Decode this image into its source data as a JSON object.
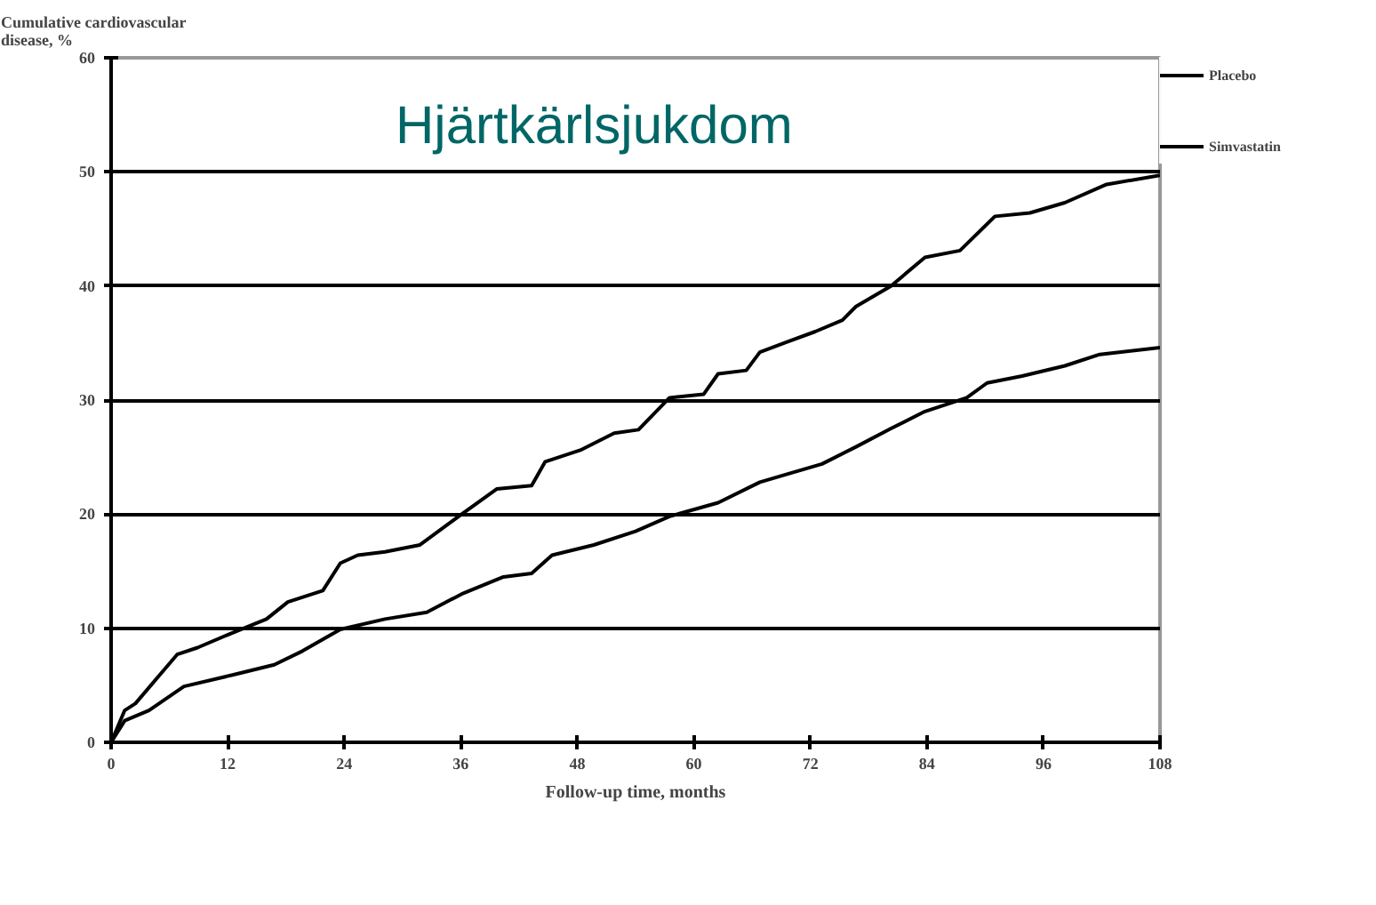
{
  "chart_data": {
    "type": "line",
    "title": "Hjärtkärlsjukdom",
    "ylabel": "Cumulative cardiovascular\ndisease, %",
    "xlabel": "Follow-up time, months",
    "xlim": [
      0,
      108
    ],
    "xticks": [
      0,
      12,
      24,
      36,
      48,
      60,
      72,
      84,
      96,
      108
    ],
    "ylim": [
      0,
      60
    ],
    "yticks": [
      0,
      10,
      20,
      30,
      40,
      50,
      60
    ],
    "grid": "y",
    "legend": "right",
    "line_style": "solid",
    "series": [
      {
        "name": "Placebo",
        "color": "#000000",
        "x": [
          0,
          1.4,
          2.5,
          6.8,
          8.9,
          12.5,
          16,
          18.2,
          21.8,
          23.6,
          25.4,
          28.2,
          31.8,
          36.1,
          39.7,
          43.3,
          44.7,
          48.3,
          51.8,
          54.3,
          57.5,
          61,
          62.5,
          65.4,
          66.8,
          69.6,
          72.5,
          75.3,
          76.7,
          80.3,
          83.8,
          87.4,
          91,
          94.6,
          98.2,
          102.5,
          108
        ],
        "values": [
          0,
          2.8,
          3.4,
          7.7,
          8.3,
          9.6,
          10.8,
          12.3,
          13.3,
          15.7,
          16.4,
          16.7,
          17.3,
          20,
          22.2,
          22.5,
          24.6,
          25.6,
          27.1,
          27.4,
          30.2,
          30.5,
          32.3,
          32.6,
          34.2,
          35.1,
          36,
          37,
          38.2,
          40,
          42.5,
          43.1,
          46.1,
          46.4,
          47.3,
          48.9,
          49.7
        ]
      },
      {
        "name": "Simvastatin",
        "color": "#000000",
        "x": [
          0,
          1.4,
          3.9,
          7.5,
          12.5,
          16.8,
          19.7,
          23.6,
          28.2,
          32.5,
          36.1,
          40.4,
          43.3,
          45.4,
          49.7,
          54,
          57.5,
          62.5,
          66.8,
          69.6,
          73.2,
          76.7,
          80.3,
          83.8,
          88.1,
          90.2,
          93.8,
          98.2,
          101.8,
          108
        ],
        "values": [
          0,
          1.9,
          2.8,
          4.9,
          5.9,
          6.8,
          8,
          9.9,
          10.8,
          11.4,
          13,
          14.5,
          14.8,
          16.4,
          17.3,
          18.5,
          19.8,
          21,
          22.8,
          23.5,
          24.4,
          25.9,
          27.5,
          29,
          30.2,
          31.5,
          32.1,
          33,
          34,
          34.6
        ]
      }
    ]
  }
}
